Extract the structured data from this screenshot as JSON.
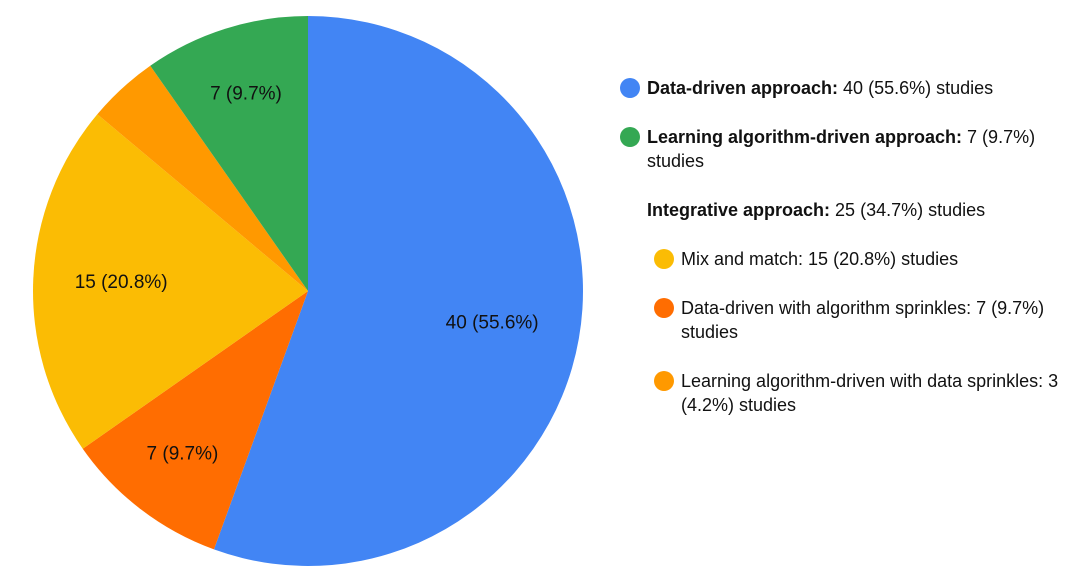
{
  "chart_data": {
    "type": "pie",
    "categories": [
      "Data-driven approach",
      "Data-driven with algorithm sprinkles",
      "Mix and match",
      "Learning algorithm-driven with data sprinkles",
      "Learning algorithm-driven approach"
    ],
    "values": [
      40,
      7,
      15,
      3,
      7
    ],
    "value_labels": [
      "40 (55.6%)",
      "7 (9.7%)",
      "15 (20.8%)",
      null,
      "7 (9.7%)"
    ],
    "colors": [
      "#4285f4",
      "#ff6d01",
      "#fbbc04",
      "#ff9900",
      "#34a853"
    ],
    "legend": [
      {
        "bold": "Data-driven approach:",
        "text": " 40 (55.6%) studies",
        "color": "#4285f4"
      },
      {
        "bold": "Learning algorithm-driven approach:",
        "text": " 7 (9.7%) studies",
        "color": "#34a853"
      },
      {
        "bold": "Integrative approach:",
        "text": " 25 (34.7%) studies",
        "children": [
          {
            "text": "Mix and match: 15 (20.8%) studies",
            "color": "#fbbc04"
          },
          {
            "text": "Data-driven with algorithm sprinkles: 7 (9.7%) studies",
            "color": "#ff6d01"
          },
          {
            "text": "Learning algorithm-driven with data sprinkles: 3 (4.2%) studies",
            "color": "#ff9900"
          }
        ]
      }
    ]
  }
}
